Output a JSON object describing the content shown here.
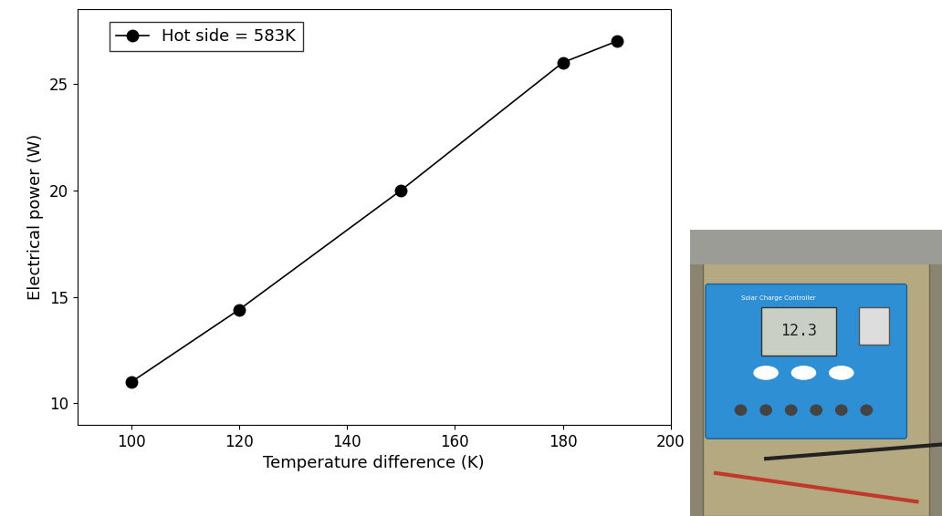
{
  "chart_data": {
    "type": "line",
    "x": [
      100,
      120,
      150,
      180,
      190
    ],
    "series": [
      {
        "name": "Hot side = 583K",
        "color": "#000000",
        "marker": "o",
        "line_style": "solid",
        "values": [
          11,
          14.4,
          20,
          26,
          27
        ]
      }
    ],
    "x_label": "Temperature difference (K)",
    "y_label": "Electrical power (W)",
    "xlim": [
      90,
      200
    ],
    "xticks": [
      100,
      120,
      140,
      160,
      180,
      200
    ],
    "ylim": [
      9,
      28.5
    ],
    "yticks": [
      10,
      15,
      20,
      25
    ],
    "legend": "upper left",
    "grid": false
  },
  "photo": {
    "device_label": "Solar Charge Controller",
    "display": "12.3"
  }
}
